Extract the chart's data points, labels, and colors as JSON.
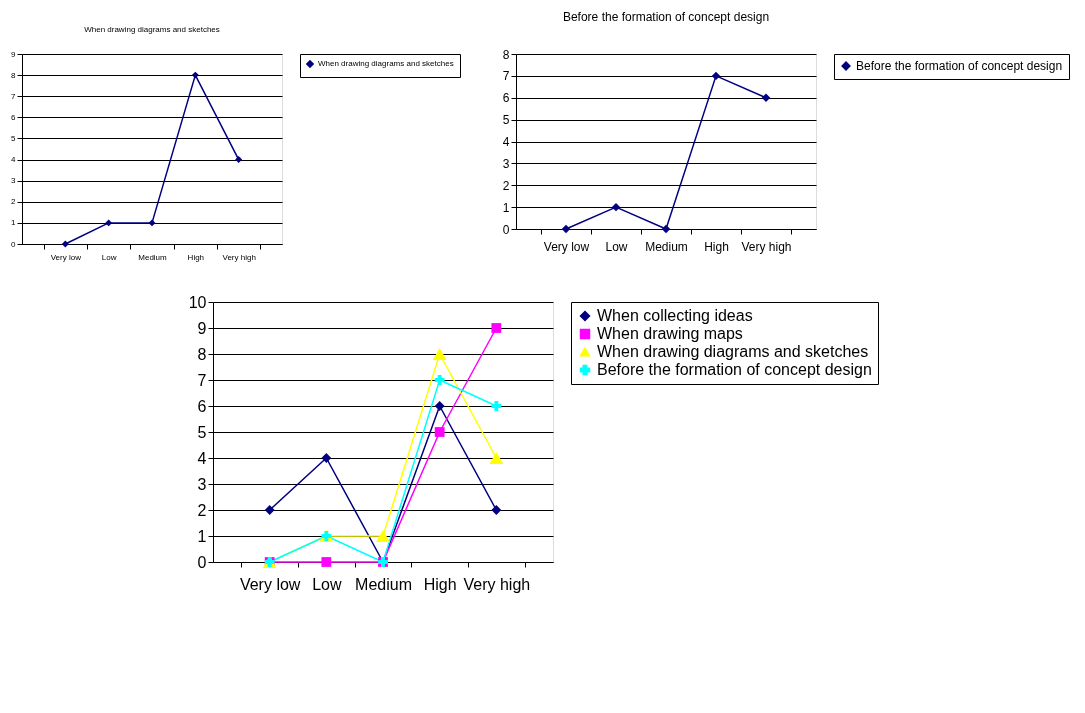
{
  "chart_data": [
    {
      "type": "line",
      "title": "When drawing diagrams and sketches",
      "categories": [
        "Very low",
        "Low",
        "Medium",
        "High",
        "Very high"
      ],
      "ylim": [
        0,
        9
      ],
      "yticks": [
        0,
        1,
        2,
        3,
        4,
        5,
        6,
        7,
        8,
        9
      ],
      "grid": "y",
      "legend": "right",
      "line_style": "solid",
      "series": [
        {
          "name": "When drawing diagrams and sketches",
          "color": "#000080",
          "marker": "diamond",
          "values": [
            0,
            1,
            1,
            8,
            4
          ]
        }
      ]
    },
    {
      "type": "line",
      "title": "Before the formation of concept design",
      "categories": [
        "Very low",
        "Low",
        "Medium",
        "High",
        "Very high"
      ],
      "ylim": [
        0,
        8
      ],
      "yticks": [
        0,
        1,
        2,
        3,
        4,
        5,
        6,
        7,
        8
      ],
      "grid": "y",
      "legend": "right",
      "line_style": "solid",
      "series": [
        {
          "name": "Before the formation of concept design",
          "color": "#000080",
          "marker": "diamond",
          "values": [
            0,
            1,
            0,
            7,
            6
          ]
        }
      ]
    },
    {
      "type": "line",
      "categories": [
        "Very low",
        "Low",
        "Medium",
        "High",
        "Very high"
      ],
      "ylim": [
        0,
        10
      ],
      "yticks": [
        0,
        1,
        2,
        3,
        4,
        5,
        6,
        7,
        8,
        9,
        10
      ],
      "grid": "y",
      "legend": "right",
      "line_style": "solid",
      "series": [
        {
          "name": "When collecting ideas",
          "color": "#000080",
          "marker": "diamond",
          "values": [
            2,
            4,
            0,
            6,
            2
          ]
        },
        {
          "name": "When drawing maps",
          "color": "#ff00ff",
          "marker": "square",
          "values": [
            0,
            0,
            0,
            5,
            9
          ]
        },
        {
          "name": "When drawing diagrams and sketches",
          "color": "#ffff00",
          "marker": "triangle",
          "values": [
            0,
            1,
            1,
            8,
            4
          ]
        },
        {
          "name": "Before the formation of concept design",
          "color": "#00ffff",
          "marker": "cross",
          "values": [
            0,
            1,
            0,
            7,
            6
          ]
        }
      ]
    }
  ]
}
